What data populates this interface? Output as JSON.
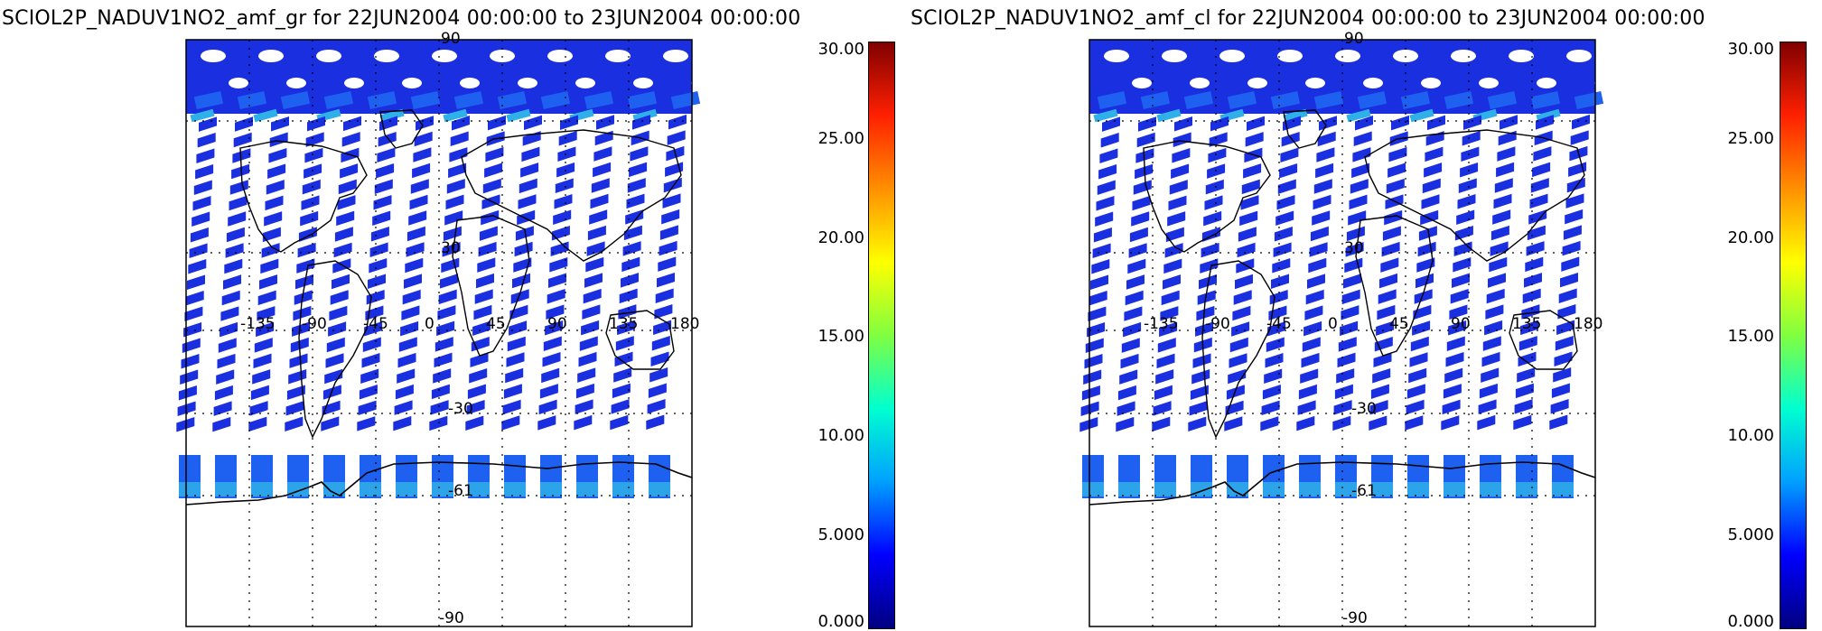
{
  "panels": [
    {
      "title": "SCIOL2P_NADUV1NO2_amf_gr for 22JUN2004 00:00:00 to 23JUN2004 00:00:00",
      "colorbar_ticks": [
        "30.00",
        "25.00",
        "20.00",
        "15.00",
        "10.00",
        "5.000",
        "0.000"
      ],
      "lon_labels": [
        "-135",
        "-90",
        "-45",
        "0",
        "45",
        "90",
        "135",
        "180"
      ],
      "lat_labels": [
        "90",
        "30",
        "-30",
        "-61",
        "-90"
      ]
    },
    {
      "title": "SCIOL2P_NADUV1NO2_amf_cl for 22JUN2004 00:00:00 to 23JUN2004 00:00:00",
      "colorbar_ticks": [
        "30.00",
        "25.00",
        "20.00",
        "15.00",
        "10.00",
        "5.000",
        "0.000"
      ],
      "lon_labels": [
        "-135",
        "-90",
        "-45",
        "0",
        "45",
        "90",
        "135",
        "180"
      ],
      "lat_labels": [
        "90",
        "30",
        "-30",
        "-61",
        "-90"
      ]
    }
  ],
  "colorbar": {
    "min": 0,
    "max": 30,
    "colors": [
      "#000080",
      "#0000ff",
      "#00a0ff",
      "#00ffd0",
      "#80ff40",
      "#ffff00",
      "#ff9000",
      "#ff2000",
      "#800000"
    ]
  },
  "map": {
    "data_band_color": "#1a2fe0",
    "high_lat_band_color": "#1e60f0",
    "near_pole_color": "#30b0e8"
  }
}
